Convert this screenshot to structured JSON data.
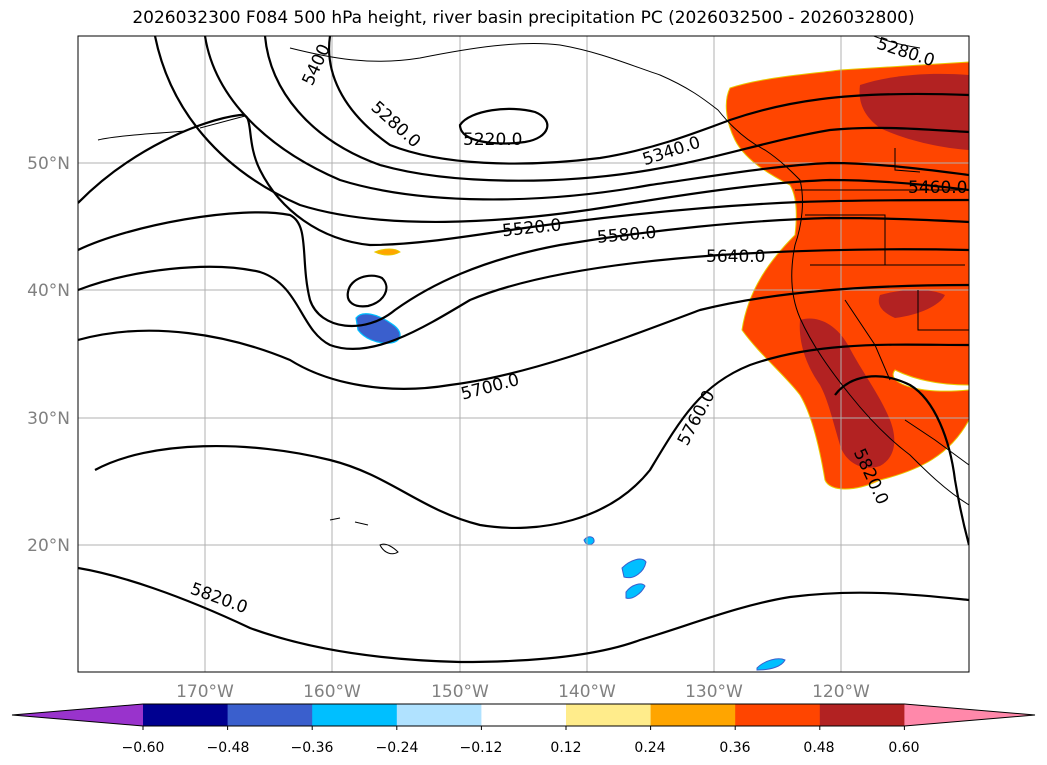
{
  "title": "2026032300 F084 500 hPa height, river basin precipitation PC (2026032500 - 2026032800)",
  "map": {
    "lat_labels": [
      "50°N",
      "40°N",
      "30°N",
      "20°N"
    ],
    "lon_labels": [
      "170°W",
      "160°W",
      "150°W",
      "140°W",
      "130°W",
      "120°W"
    ],
    "contour_labels": [
      "5400",
      "5280.0",
      "5220.0",
      "5340.0",
      "5280.0",
      "5460.0",
      "5520.0",
      "5580.0",
      "5640.0",
      "5700.0",
      "5760.0",
      "5820.0",
      "5820.0"
    ]
  },
  "colorbar": {
    "colors": [
      "#9933cc",
      "#000090",
      "#3a5fcd",
      "#00bfff",
      "#b0e2ff",
      "#ffffff",
      "#ffec8b",
      "#ffa500",
      "#ff4500",
      "#b22222",
      "#ff88aa"
    ],
    "tick_labels": [
      "−0.60",
      "−0.48",
      "−0.36",
      "−0.24",
      "−0.12",
      "0.12",
      "0.24",
      "0.36",
      "0.48",
      "0.60"
    ]
  }
}
